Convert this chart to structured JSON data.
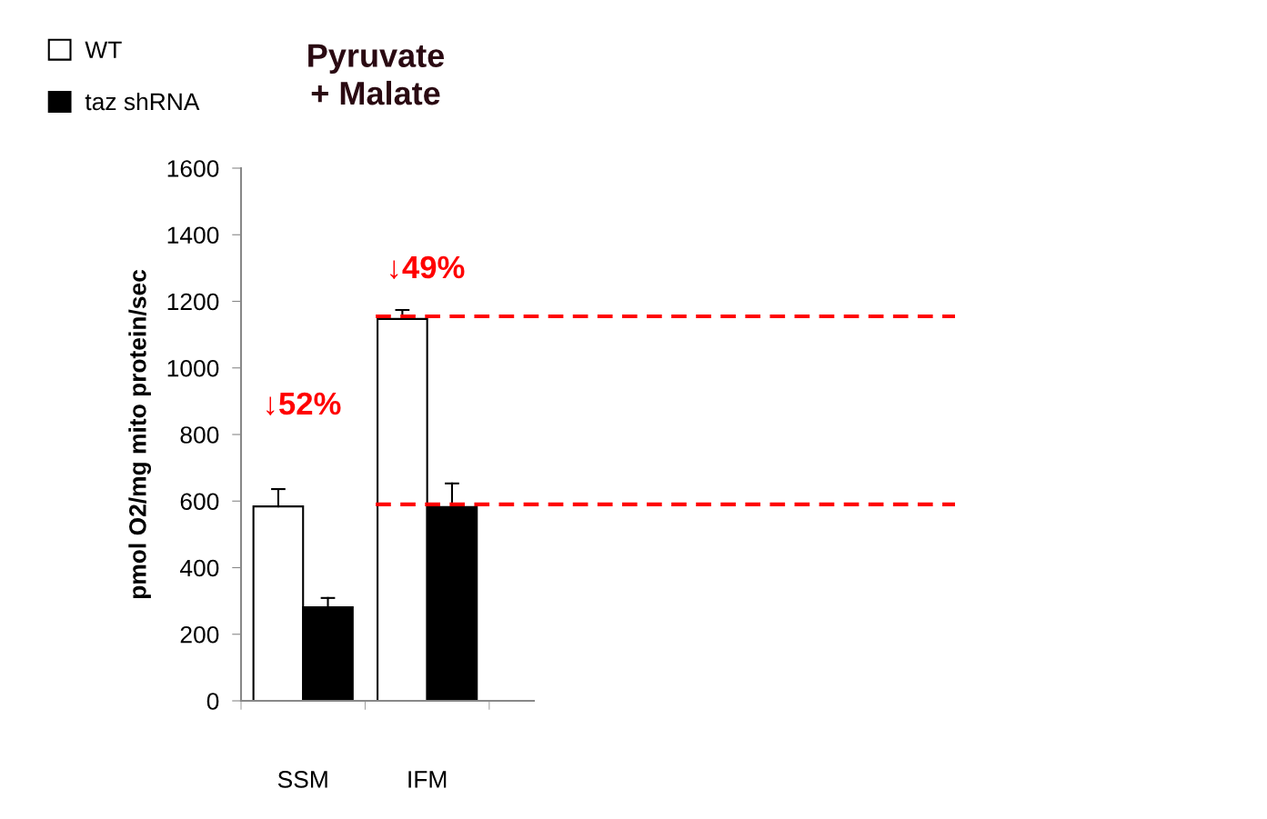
{
  "chart_data": {
    "type": "bar",
    "title": "Pyruvate\n+ Malate",
    "ylabel": "pmol O2/mg mito protein/sec",
    "categories": [
      "SSM",
      "IFM"
    ],
    "series": [
      {
        "name": "WT",
        "color": "#ffffff",
        "values": [
          584,
          1147
        ],
        "errors": [
          [
            584,
            636
          ],
          [
            1147,
            1174
          ]
        ]
      },
      {
        "name": "taz shRNA",
        "color": "#000000",
        "values": [
          281,
          582
        ],
        "errors": [
          [
            281,
            309
          ],
          [
            582,
            653
          ]
        ]
      }
    ],
    "ylim": [
      0,
      1600
    ],
    "yticks": [
      0,
      200,
      400,
      600,
      800,
      1000,
      1200,
      1400,
      1600
    ],
    "grid": false,
    "legend": "top left",
    "ref_lines": [
      {
        "axis": "y",
        "value": 1155,
        "color": "#ff0000",
        "line_style": "dashed"
      },
      {
        "axis": "y",
        "value": 590,
        "color": "#ff0000",
        "line_style": "dashed"
      }
    ],
    "annotations": [
      "↓52%",
      "↓49%"
    ]
  }
}
